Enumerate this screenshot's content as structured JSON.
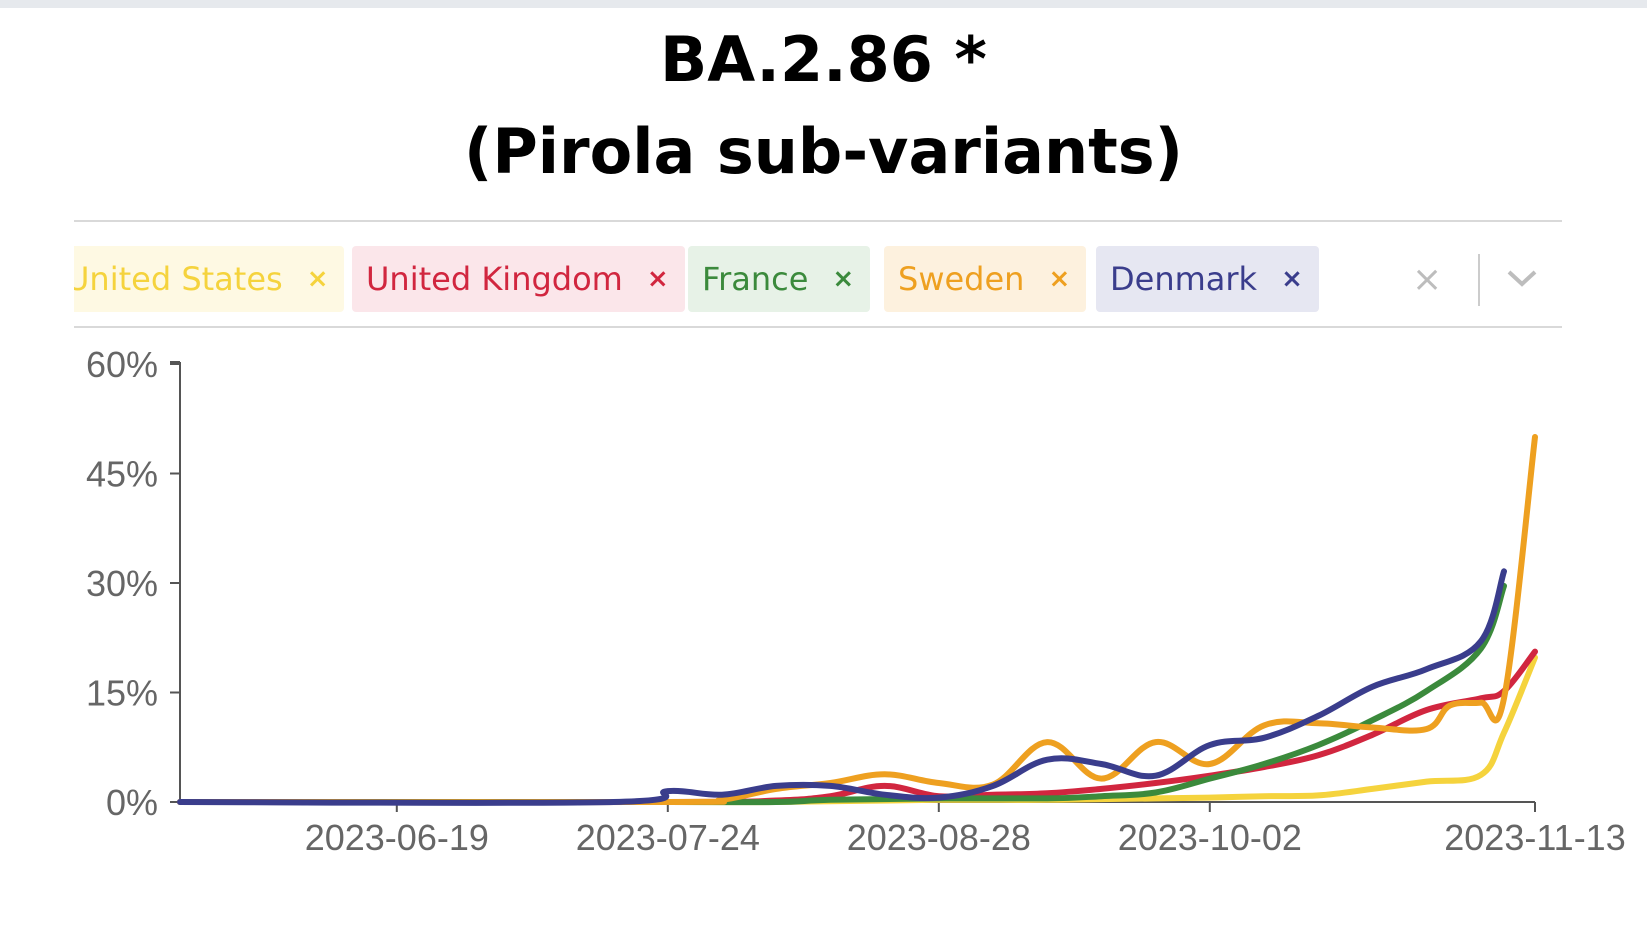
{
  "title": {
    "line1": "BA.2.86 *",
    "line2": "(Pirola sub-variants)"
  },
  "filters": [
    {
      "label": "United States",
      "remove": "×",
      "color": "#f5d33d",
      "bg": "#fef9e3"
    },
    {
      "label": "United Kingdom",
      "remove": "×",
      "color": "#d1263f",
      "bg": "#fbe6ea"
    },
    {
      "label": "France",
      "remove": "×",
      "color": "#3b8a3c",
      "bg": "#e7f2e7"
    },
    {
      "label": "Sweden",
      "remove": "×",
      "color": "#eea020",
      "bg": "#fdf1de"
    },
    {
      "label": "Denmark",
      "remove": "×",
      "color": "#3a3d8c",
      "bg": "#e6e7f2"
    }
  ],
  "controls": {
    "clear_all": "×",
    "dropdown_icon": "chevron-down-icon"
  },
  "chart_data": {
    "type": "line",
    "x_axis": {
      "type": "date",
      "domain": [
        "2023-05-22",
        "2023-11-13"
      ],
      "ticks": [
        "2023-06-19",
        "2023-07-24",
        "2023-08-28",
        "2023-10-02",
        "2023-11-13"
      ]
    },
    "y_axis": {
      "domain": [
        0,
        60
      ],
      "ticks": [
        0,
        15,
        30,
        45,
        60
      ],
      "tick_labels": [
        "0%",
        "15%",
        "30%",
        "45%",
        "60%"
      ]
    },
    "series": [
      {
        "name": "United States",
        "color": "#f5d33d",
        "points": [
          [
            "2023-05-22",
            0
          ],
          [
            "2023-07-24",
            0
          ],
          [
            "2023-08-07",
            0
          ],
          [
            "2023-08-28",
            0.3
          ],
          [
            "2023-09-11",
            0.3
          ],
          [
            "2023-09-25",
            0.5
          ],
          [
            "2023-10-02",
            0.6
          ],
          [
            "2023-10-09",
            0.8
          ],
          [
            "2023-10-16",
            0.9
          ],
          [
            "2023-10-23",
            1.8
          ],
          [
            "2023-10-30",
            2.8
          ],
          [
            "2023-11-06",
            3.7
          ],
          [
            "2023-11-09",
            9.5
          ],
          [
            "2023-11-13",
            19.8
          ]
        ]
      },
      {
        "name": "United Kingdom",
        "color": "#d1263f",
        "points": [
          [
            "2023-05-22",
            0
          ],
          [
            "2023-07-24",
            0
          ],
          [
            "2023-08-07",
            0.2
          ],
          [
            "2023-08-14",
            0.8
          ],
          [
            "2023-08-21",
            2.2
          ],
          [
            "2023-08-28",
            0.8
          ],
          [
            "2023-09-04",
            1.0
          ],
          [
            "2023-09-11",
            1.2
          ],
          [
            "2023-09-18",
            1.8
          ],
          [
            "2023-09-25",
            2.6
          ],
          [
            "2023-10-02",
            3.6
          ],
          [
            "2023-10-09",
            4.8
          ],
          [
            "2023-10-16",
            6.4
          ],
          [
            "2023-10-23",
            9.2
          ],
          [
            "2023-10-30",
            12.6
          ],
          [
            "2023-11-06",
            14.2
          ],
          [
            "2023-11-09",
            15.2
          ],
          [
            "2023-11-13",
            20.6
          ]
        ]
      },
      {
        "name": "France",
        "color": "#3b8a3c",
        "points": [
          [
            "2023-05-22",
            0
          ],
          [
            "2023-07-24",
            0
          ],
          [
            "2023-08-07",
            0
          ],
          [
            "2023-08-14",
            0.3
          ],
          [
            "2023-08-28",
            0.5
          ],
          [
            "2023-09-11",
            0.5
          ],
          [
            "2023-09-18",
            0.8
          ],
          [
            "2023-09-25",
            1.3
          ],
          [
            "2023-10-02",
            3.2
          ],
          [
            "2023-10-09",
            5.2
          ],
          [
            "2023-10-16",
            7.8
          ],
          [
            "2023-10-23",
            11.2
          ],
          [
            "2023-10-30",
            15.2
          ],
          [
            "2023-11-06",
            21.0
          ],
          [
            "2023-11-09",
            29.6
          ]
        ]
      },
      {
        "name": "Sweden",
        "color": "#eea020",
        "points": [
          [
            "2023-05-22",
            0
          ],
          [
            "2023-07-24",
            0
          ],
          [
            "2023-07-31",
            0.3
          ],
          [
            "2023-08-07",
            1.8
          ],
          [
            "2023-08-14",
            2.6
          ],
          [
            "2023-08-21",
            3.8
          ],
          [
            "2023-08-28",
            2.6
          ],
          [
            "2023-09-04",
            2.4
          ],
          [
            "2023-09-11",
            8.2
          ],
          [
            "2023-09-18",
            3.2
          ],
          [
            "2023-09-25",
            8.2
          ],
          [
            "2023-10-02",
            5.2
          ],
          [
            "2023-10-09",
            10.5
          ],
          [
            "2023-10-16",
            10.8
          ],
          [
            "2023-10-23",
            10.2
          ],
          [
            "2023-10-30",
            10.0
          ],
          [
            "2023-11-02",
            13.2
          ],
          [
            "2023-11-06",
            13.6
          ],
          [
            "2023-11-09",
            14.2
          ],
          [
            "2023-11-13",
            50.0
          ]
        ]
      },
      {
        "name": "Denmark",
        "color": "#3a3d8c",
        "points": [
          [
            "2023-05-22",
            0
          ],
          [
            "2023-07-17",
            0
          ],
          [
            "2023-07-24",
            1.5
          ],
          [
            "2023-07-31",
            1.0
          ],
          [
            "2023-08-07",
            2.2
          ],
          [
            "2023-08-14",
            2.2
          ],
          [
            "2023-08-21",
            1.0
          ],
          [
            "2023-08-28",
            0.6
          ],
          [
            "2023-09-04",
            2.2
          ],
          [
            "2023-09-11",
            5.8
          ],
          [
            "2023-09-18",
            5.2
          ],
          [
            "2023-09-25",
            3.6
          ],
          [
            "2023-10-02",
            7.8
          ],
          [
            "2023-10-09",
            8.8
          ],
          [
            "2023-10-16",
            11.8
          ],
          [
            "2023-10-23",
            15.8
          ],
          [
            "2023-10-30",
            18.2
          ],
          [
            "2023-11-06",
            22.0
          ],
          [
            "2023-11-09",
            31.6
          ]
        ]
      }
    ]
  }
}
